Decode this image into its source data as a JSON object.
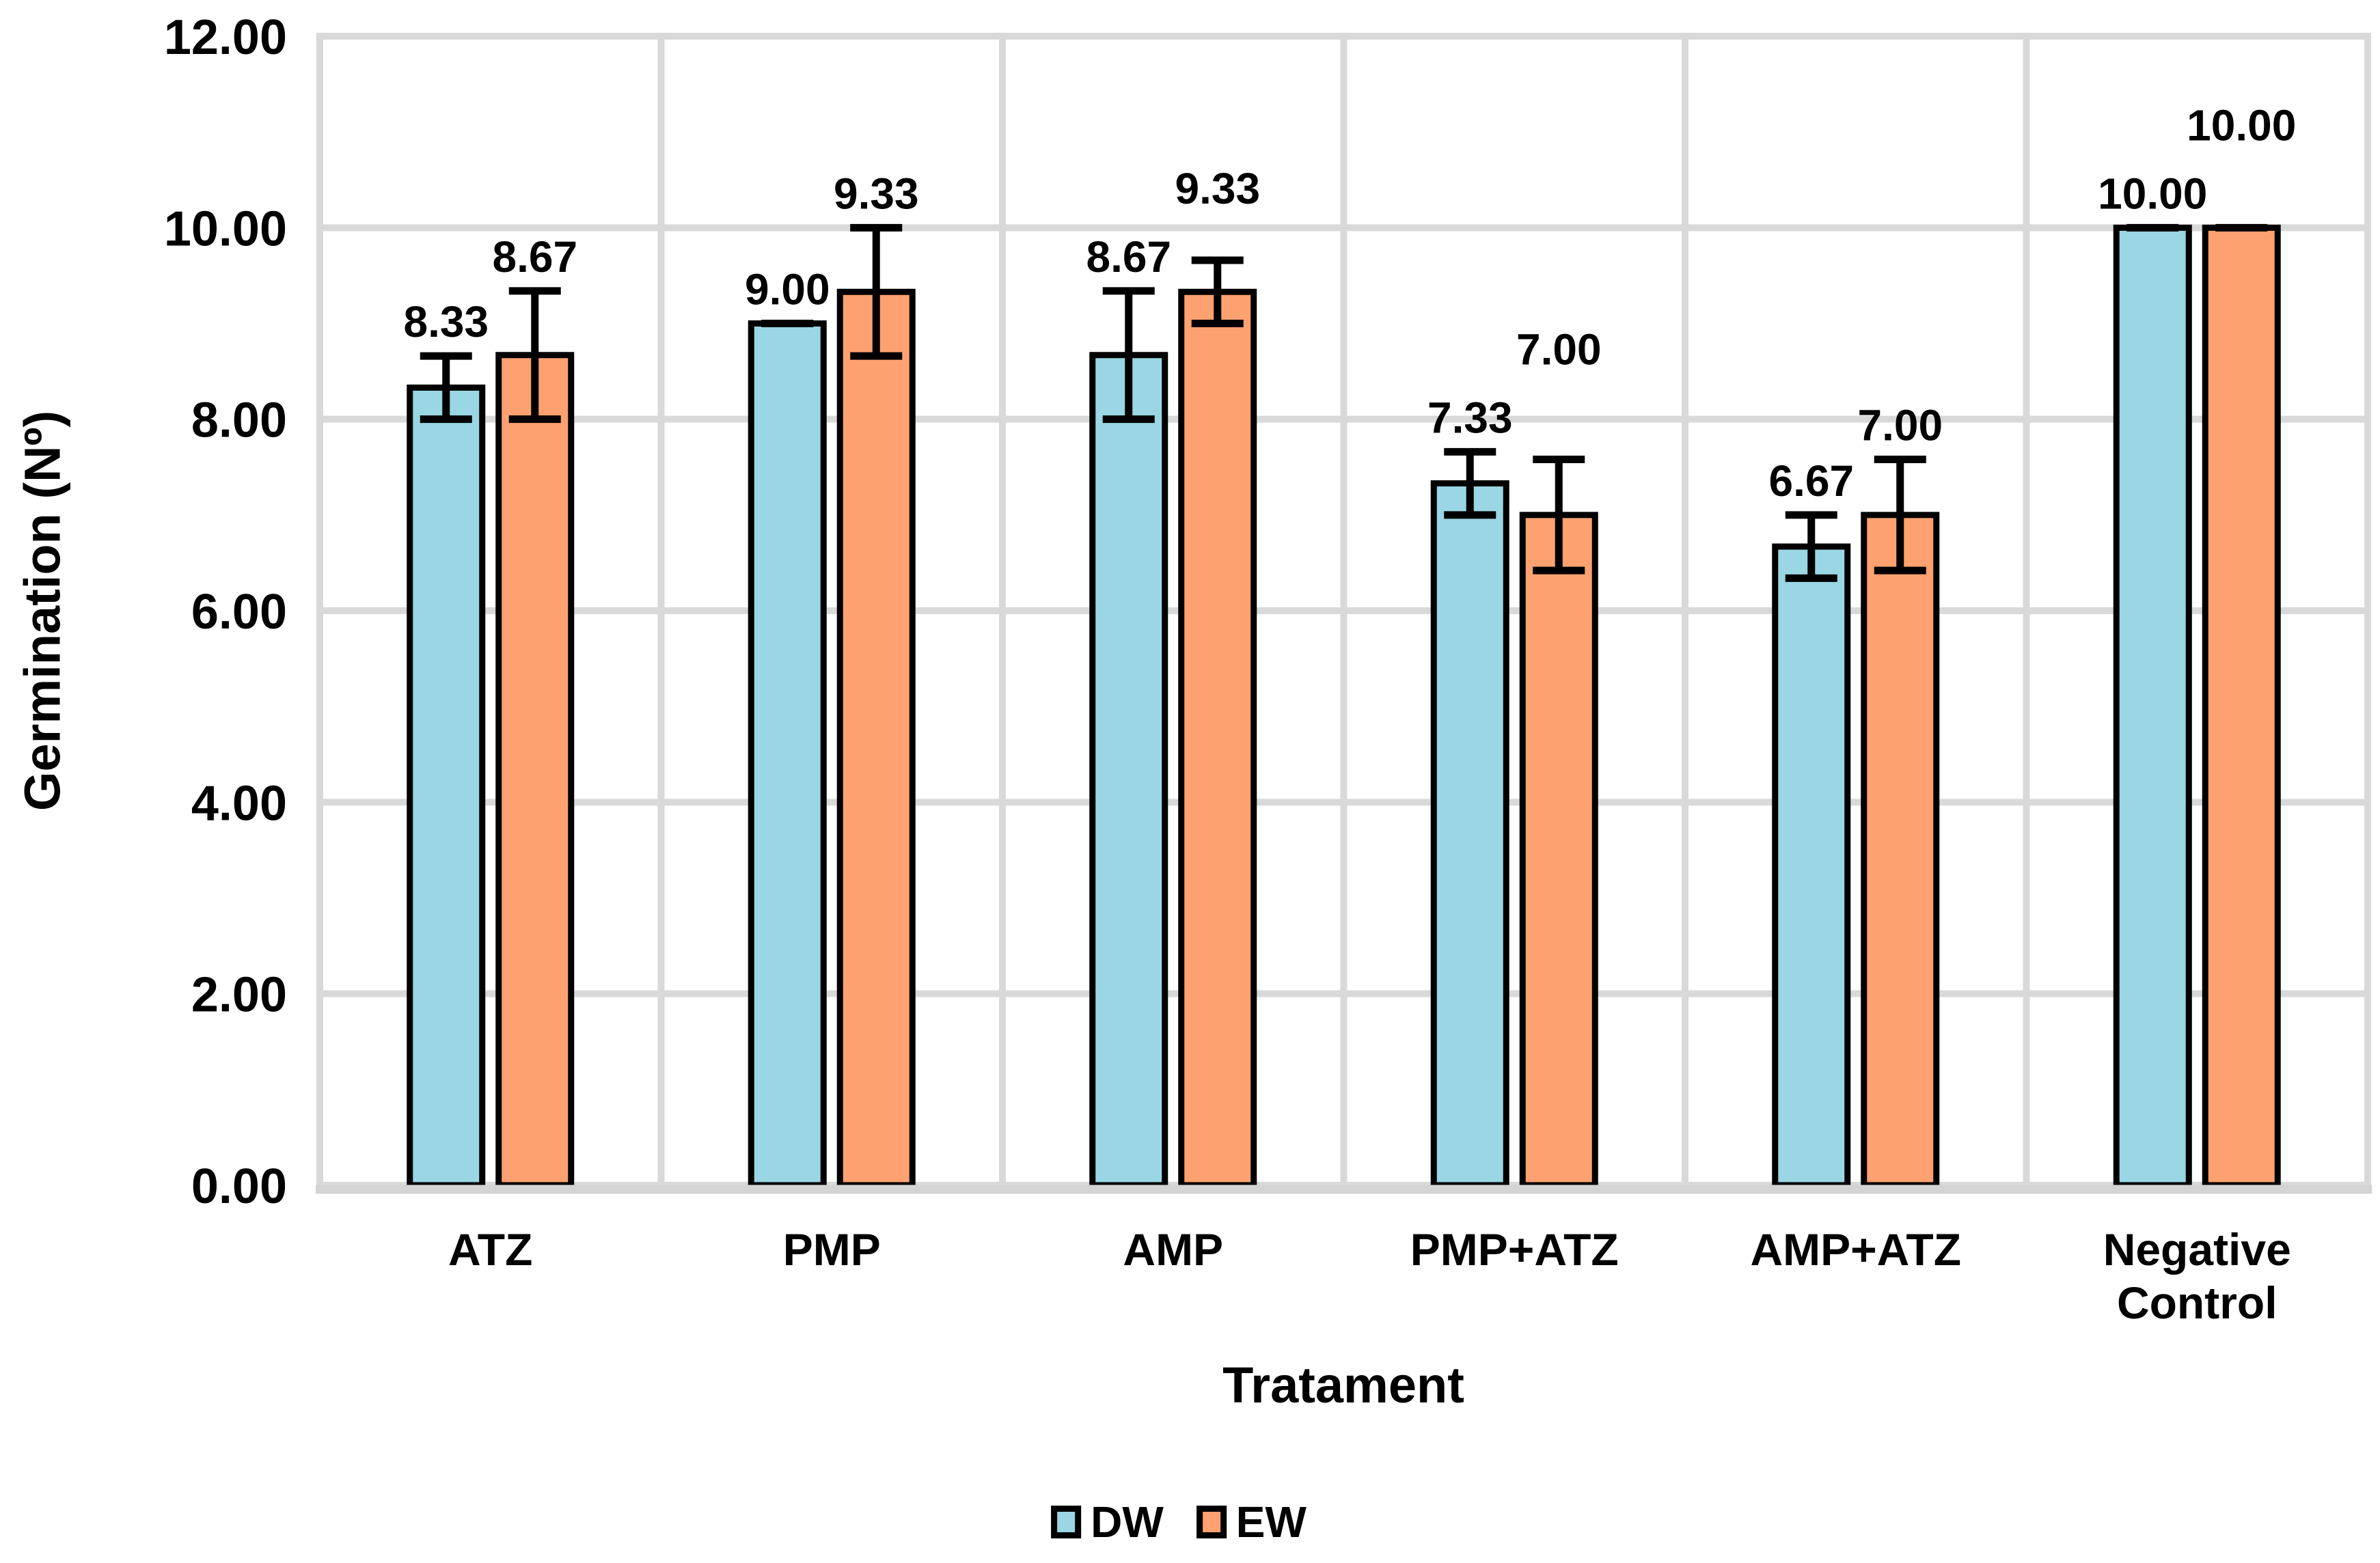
{
  "chart_data": {
    "type": "bar",
    "xlabel": "Tratament",
    "ylabel": "Germination (Nº)",
    "categories": [
      "ATZ",
      "PMP",
      "AMP",
      "PMP+ATZ",
      "AMP+ATZ",
      "Negative Control"
    ],
    "series": [
      {
        "name": "DW",
        "color": "#9AD6E4",
        "values": [
          8.33,
          9.0,
          8.67,
          7.33,
          6.67,
          10.0
        ],
        "errors": [
          0.33,
          0.0,
          0.67,
          0.33,
          0.33,
          0.0
        ],
        "labels": [
          "8.33",
          "9.00",
          "8.67",
          "7.33",
          "6.67",
          "10.00"
        ]
      },
      {
        "name": "EW",
        "color": "#FDA171",
        "values": [
          8.67,
          9.33,
          9.33,
          7.0,
          7.0,
          10.0
        ],
        "errors": [
          0.67,
          0.67,
          0.33,
          0.58,
          0.58,
          0.0
        ],
        "labels": [
          "8.67",
          "9.33",
          "9.33",
          "7.00",
          "7.00",
          "10.00"
        ]
      }
    ],
    "ylim": [
      0,
      12
    ],
    "ytick_step": 2,
    "ytick_labels": [
      "0.00",
      "2.00",
      "4.00",
      "6.00",
      "8.00",
      "10.00",
      "12.00"
    ],
    "grid": true,
    "legend_position": "bottom",
    "colors": {
      "grid": "#D9D9D9",
      "axis_line": "#D4D4D4",
      "bar_outline": "#000000",
      "error_bar": "#000000",
      "label_text": "#000000"
    }
  }
}
